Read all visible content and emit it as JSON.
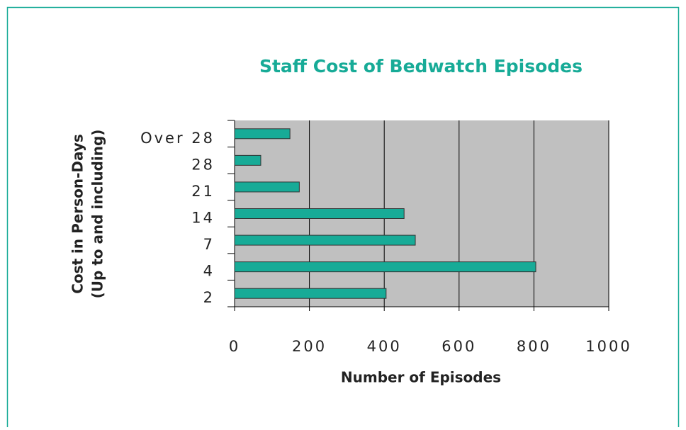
{
  "chart_data": {
    "type": "bar",
    "orientation": "horizontal",
    "title": "Staff Cost of Bedwatch Episodes",
    "x_label": "Number of Episodes",
    "y_label": [
      "Cost in Person-Days",
      "(Up to and including)"
    ],
    "categories": [
      "2",
      "4",
      "7",
      "14",
      "21",
      "28",
      "Over 28"
    ],
    "values": [
      405,
      805,
      483,
      453,
      173,
      70,
      148
    ],
    "color": "#17ab97",
    "xlim": [
      0,
      1000
    ],
    "xticks": [
      0,
      200,
      400,
      600,
      800,
      1000
    ],
    "grid": true
  }
}
